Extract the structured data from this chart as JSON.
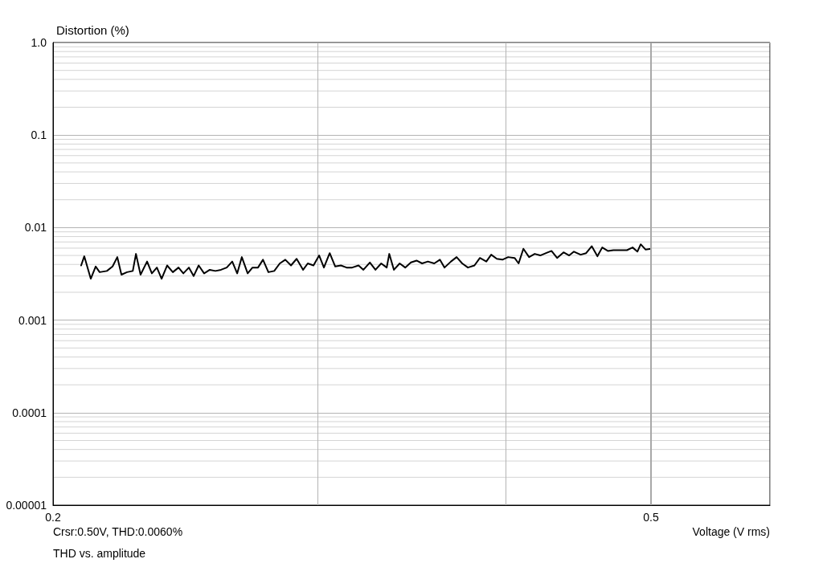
{
  "chart_data": {
    "type": "line",
    "ylabel": "Distortion (%)",
    "xlabel": "Voltage (V rms)",
    "annotations": [
      "Crsr:0.50V, THD:0.0060%",
      "THD vs. amplitude"
    ],
    "log": "xy",
    "grid": true,
    "marker": "none",
    "line_style": "solid",
    "xlim": [
      0.2,
      0.6
    ],
    "xticks": [
      0.2,
      {
        "value": 0.3,
        "label": null
      },
      {
        "value": 0.4,
        "label": null
      },
      0.5,
      {
        "value": 0.6,
        "label": null
      }
    ],
    "ylim": [
      1e-05,
      1
    ],
    "yticks": [
      {
        "value": 1e-05,
        "label": "0.00001"
      },
      0.0001,
      0.001,
      0.01,
      0.1,
      {
        "value": 1,
        "label": "1.0"
      }
    ],
    "ref_lines": [
      {
        "axis": "x",
        "value": 0.5,
        "color": "#a8a8a8"
      }
    ],
    "series": [
      {
        "color": "#000000",
        "x": [
          0.2088,
          0.2098,
          0.2119,
          0.2135,
          0.2148,
          0.2172,
          0.2191,
          0.2207,
          0.2221,
          0.224,
          0.226,
          0.2271,
          0.2287,
          0.231,
          0.2327,
          0.2345,
          0.2362,
          0.2382,
          0.2403,
          0.2424,
          0.2442,
          0.2463,
          0.2481,
          0.25,
          0.2521,
          0.2543,
          0.2565,
          0.2587,
          0.261,
          0.2632,
          0.2652,
          0.2671,
          0.2695,
          0.2715,
          0.2738,
          0.2759,
          0.2782,
          0.2807,
          0.2831,
          0.2855,
          0.288,
          0.2905,
          0.2934,
          0.2955,
          0.2981,
          0.3007,
          0.3029,
          0.3056,
          0.3082,
          0.3109,
          0.3136,
          0.3163,
          0.3194,
          0.3218,
          0.325,
          0.3278,
          0.3307,
          0.3335,
          0.3348,
          0.3372,
          0.3402,
          0.3431,
          0.3461,
          0.3491,
          0.3521,
          0.3552,
          0.3587,
          0.3618,
          0.3644,
          0.368,
          0.3712,
          0.3744,
          0.3777,
          0.3815,
          0.3847,
          0.3885,
          0.3914,
          0.3948,
          0.3982,
          0.4017,
          0.4057,
          0.4082,
          0.4112,
          0.4148,
          0.4184,
          0.422,
          0.4257,
          0.4293,
          0.433,
          0.4373,
          0.4411,
          0.4443,
          0.4489,
          0.4527,
          0.4566,
          0.4606,
          0.464,
          0.468,
          0.472,
          0.4772,
          0.4819,
          0.4861,
          0.4897,
          0.4922,
          0.4958,
          0.5
        ],
        "values": [
          0.0039,
          0.0049,
          0.0028,
          0.0038,
          0.0033,
          0.0034,
          0.0038,
          0.0048,
          0.0031,
          0.0033,
          0.0034,
          0.0052,
          0.0031,
          0.0043,
          0.0032,
          0.0037,
          0.0028,
          0.0039,
          0.0033,
          0.0037,
          0.0032,
          0.0037,
          0.003,
          0.0039,
          0.0032,
          0.0035,
          0.0034,
          0.0035,
          0.0037,
          0.0043,
          0.0032,
          0.0048,
          0.0032,
          0.0037,
          0.0037,
          0.0045,
          0.0033,
          0.0034,
          0.0041,
          0.0045,
          0.0039,
          0.0046,
          0.0035,
          0.0041,
          0.0039,
          0.005,
          0.0037,
          0.0053,
          0.0038,
          0.0039,
          0.0037,
          0.0037,
          0.0039,
          0.0035,
          0.0042,
          0.0035,
          0.0041,
          0.0037,
          0.0052,
          0.0035,
          0.0041,
          0.0037,
          0.0042,
          0.0044,
          0.0041,
          0.0043,
          0.0041,
          0.0045,
          0.0037,
          0.0043,
          0.0048,
          0.0041,
          0.0037,
          0.0039,
          0.0047,
          0.0043,
          0.0051,
          0.0046,
          0.0045,
          0.0048,
          0.0047,
          0.0041,
          0.0059,
          0.0048,
          0.0052,
          0.005,
          0.0053,
          0.0056,
          0.0047,
          0.0054,
          0.005,
          0.0055,
          0.0051,
          0.0053,
          0.0063,
          0.0049,
          0.0061,
          0.0056,
          0.0057,
          0.0057,
          0.0057,
          0.0061,
          0.0055,
          0.0066,
          0.0058,
          0.0059
        ]
      }
    ]
  }
}
